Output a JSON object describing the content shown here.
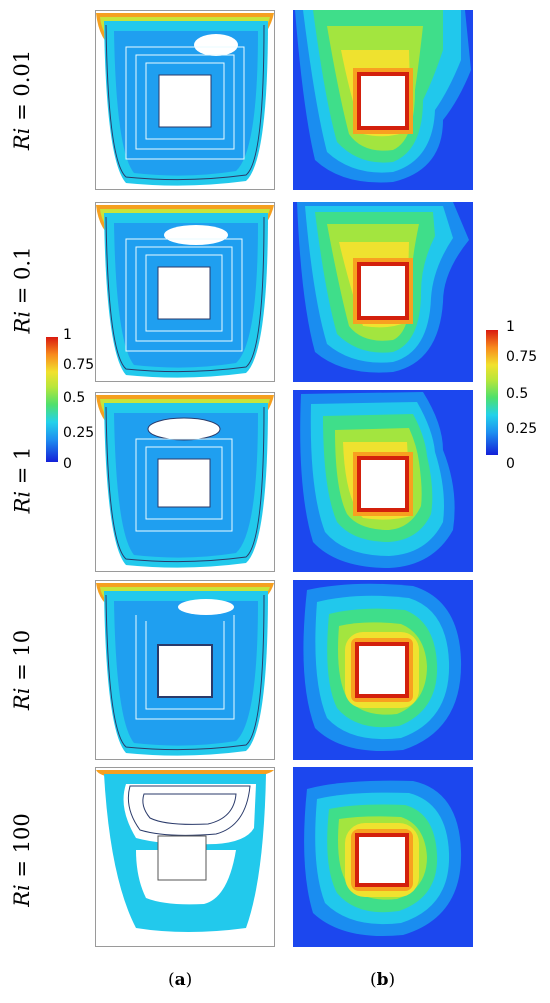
{
  "rows": [
    {
      "label": "Ri = 0.01"
    },
    {
      "label": "Ri = 0.1"
    },
    {
      "label": "Ri = 1"
    },
    {
      "label": "Ri = 10"
    },
    {
      "label": "Ri = 100"
    }
  ],
  "colorbar_left": {
    "ticks": [
      "1",
      "0.75",
      "0.5",
      "0.25",
      "0"
    ]
  },
  "colorbar_right": {
    "ticks": [
      "1",
      "0.75",
      "0.5",
      "0.25",
      "0"
    ]
  },
  "captions": {
    "a": "a",
    "b": "b"
  },
  "colors": {
    "contour_levels": [
      "#1c47ee",
      "#1a8df0",
      "#21c8ec",
      "#3fde8a",
      "#a3e53f",
      "#efe22f",
      "#f8a020",
      "#f05a14",
      "#d3200c"
    ],
    "cavity_border": "#9a9a9a"
  }
}
